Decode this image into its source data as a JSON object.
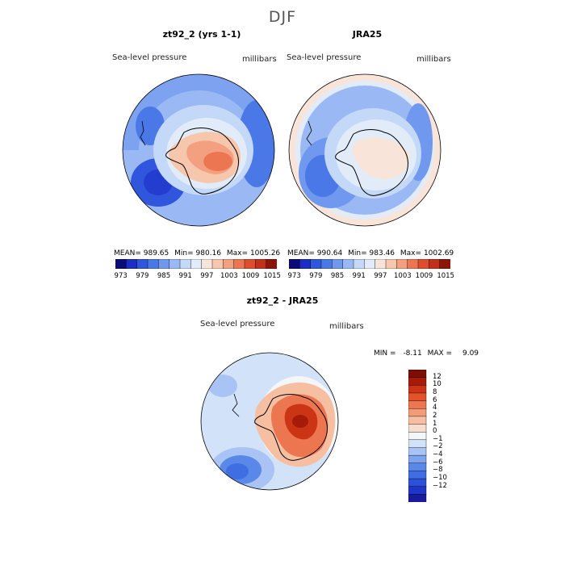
{
  "page_title": "DJF",
  "colors": {
    "absolute_scale": [
      "#0a0c7a",
      "#1c2ec4",
      "#2f56dc",
      "#4a78e6",
      "#6f98ee",
      "#9ab9f4",
      "#c4d8f8",
      "#e2ecf8",
      "#f8e4d8",
      "#f6c6ad",
      "#f2a07f",
      "#ec7652",
      "#e04d2e",
      "#c2301a",
      "#8c1408"
    ],
    "difference_scale": [
      "#1a1aa0",
      "#1f34c8",
      "#2c50d8",
      "#3f6ee2",
      "#5a88e8",
      "#7fa4ee",
      "#a9c3f4",
      "#d2e2f8",
      "#f4f6f8",
      "#f8ddcc",
      "#f6bfa2",
      "#f29d78",
      "#ec7650",
      "#e2532c",
      "#cc3416",
      "#a51a08",
      "#7e0d05"
    ],
    "coast": "#000000"
  },
  "panels": {
    "model": {
      "title": "zt92_2 (yrs 1-1)",
      "variable": "Sea-level pressure",
      "units": "millibars",
      "mean_label": "MEAN=",
      "mean": "989.65",
      "min_label": "Min=",
      "min": "980.16",
      "max_label": "Max=",
      "max": "1005.26"
    },
    "obs": {
      "title": "JRA25",
      "variable": "Sea-level pressure",
      "units": "millibars",
      "mean_label": "MEAN=",
      "mean": "990.64",
      "min_label": "Min=",
      "min": "983.46",
      "max_label": "Max=",
      "max": "1002.69"
    },
    "diff": {
      "title": "zt92_2 - JRA25",
      "variable": "Sea-level pressure",
      "units": "millibars",
      "min_label": "MIN =",
      "min": "-8.11",
      "max_label": "MAX =",
      "max": "9.09"
    }
  },
  "colorbar_top": {
    "tick_labels": [
      "973",
      "979",
      "985",
      "991",
      "997",
      "1003",
      "1009",
      "1015"
    ]
  },
  "colorbar_diff": {
    "tick_labels": [
      "12",
      "10",
      "8",
      "6",
      "4",
      "2",
      "1",
      "0",
      "−1",
      "−2",
      "−4",
      "−6",
      "−8",
      "−10",
      "−12"
    ]
  }
}
